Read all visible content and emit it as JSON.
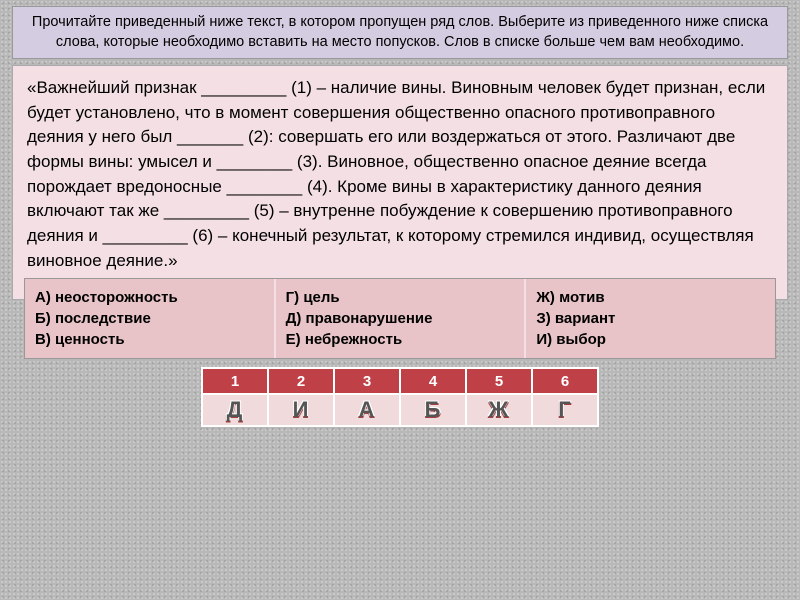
{
  "header": {
    "text": "Прочитайте приведенный ниже текст, в котором пропущен ряд слов. Выберите из приведенного ниже списка слова, которые необходимо вставить на место попусков. Слов в списке больше чем вам необходимо."
  },
  "body": {
    "text": "«Важнейший признак _________ (1) – наличие вины. Виновным человек будет признан, если будет установлено, что в момент совершения общественно опасного противоправного деяния у него был _______ (2): совершать его или воздержаться от этого. Различают две формы вины: умысел и ________ (3). Виновное, общественно опасное деяние всегда порождает вредоносные ________ (4). Кроме вины в характеристику данного деяния включают так же _________ (5) – внутренне побуждение к совершению противоправного деяния и _________ (6) – конечный результат, к которому стремился индивид, осуществляя виновное деяние.»"
  },
  "options": {
    "col1": {
      "a": "А) неосторожность",
      "b": "Б) последствие",
      "c": "В) ценность"
    },
    "col2": {
      "a": "Г) цель",
      "b": "Д) правонарушение",
      "c": "Е) небрежность"
    },
    "col3": {
      "a": "Ж) мотив",
      "b": "З) вариант",
      "c": "И) выбор"
    }
  },
  "answers": {
    "nums": {
      "n1": "1",
      "n2": "2",
      "n3": "3",
      "n4": "4",
      "n5": "5",
      "n6": "6"
    },
    "vals": {
      "v1": "Д",
      "v2": "И",
      "v3": "А",
      "v4": "Б",
      "v5": "Ж",
      "v6": "Г"
    }
  },
  "colors": {
    "header_bg": "#d4cce0",
    "body_bg": "#f4e0e4",
    "option_bg": "#e8c4c8",
    "answer_header_bg": "#c04048",
    "answer_cell_bg": "#f0dadc",
    "page_bg": "#b8b8b8"
  }
}
